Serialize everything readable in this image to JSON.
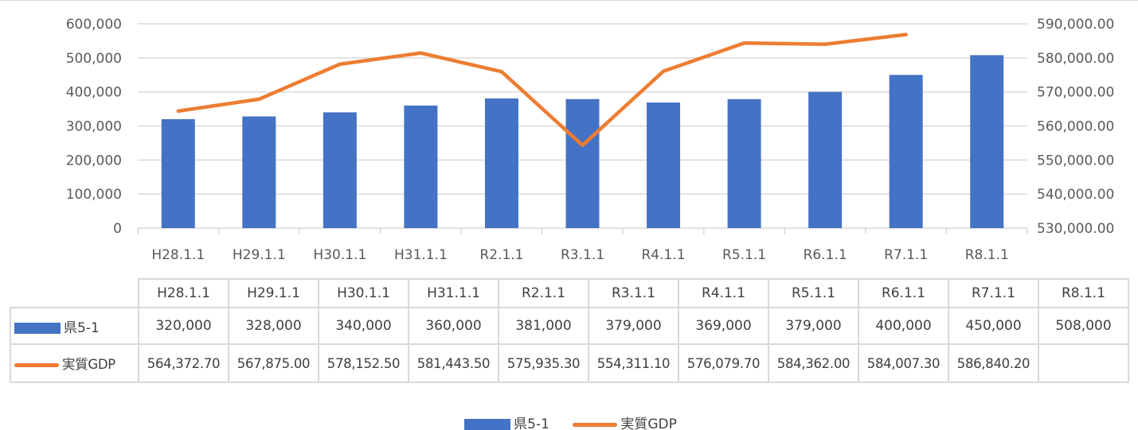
{
  "chart_data": {
    "type": "bar+line",
    "categories": [
      "H28.1.1",
      "H29.1.1",
      "H30.1.1",
      "H31.1.1",
      "R2.1.1",
      "R3.1.1",
      "R4.1.1",
      "R5.1.1",
      "R6.1.1",
      "R7.1.1",
      "R8.1.1"
    ],
    "series": [
      {
        "name": "県5-1",
        "type": "bar",
        "axis": "left",
        "color": "#4472c4",
        "values": [
          320000,
          328000,
          340000,
          360000,
          381000,
          379000,
          369000,
          379000,
          400000,
          450000,
          508000
        ],
        "labels": [
          "320,000",
          "328,000",
          "340,000",
          "360,000",
          "381,000",
          "379,000",
          "369,000",
          "379,000",
          "400,000",
          "450,000",
          "508,000"
        ]
      },
      {
        "name": "実質GDP",
        "type": "line",
        "axis": "right",
        "color": "#ed7d31",
        "values": [
          564372.7,
          567875.0,
          578152.5,
          581443.5,
          575935.3,
          554311.1,
          576079.7,
          584362.0,
          584007.3,
          586840.2,
          null
        ],
        "labels": [
          "564,372.70",
          "567,875.00",
          "578,152.50",
          "581,443.50",
          "575,935.30",
          "554,311.10",
          "576,079.70",
          "584,362.00",
          "584,007.30",
          "586,840.20",
          ""
        ]
      }
    ],
    "ylim_left": [
      0,
      600000
    ],
    "yticks_left": [
      "0",
      "100,000",
      "200,000",
      "300,000",
      "400,000",
      "500,000",
      "600,000"
    ],
    "ylim_right": [
      530000,
      590000
    ],
    "yticks_right": [
      "530,000.00",
      "540,000.00",
      "550,000.00",
      "560,000.00",
      "570,000.00",
      "580,000.00",
      "590,000.00"
    ],
    "grid": true,
    "legend": "bottom",
    "data_table": true
  }
}
